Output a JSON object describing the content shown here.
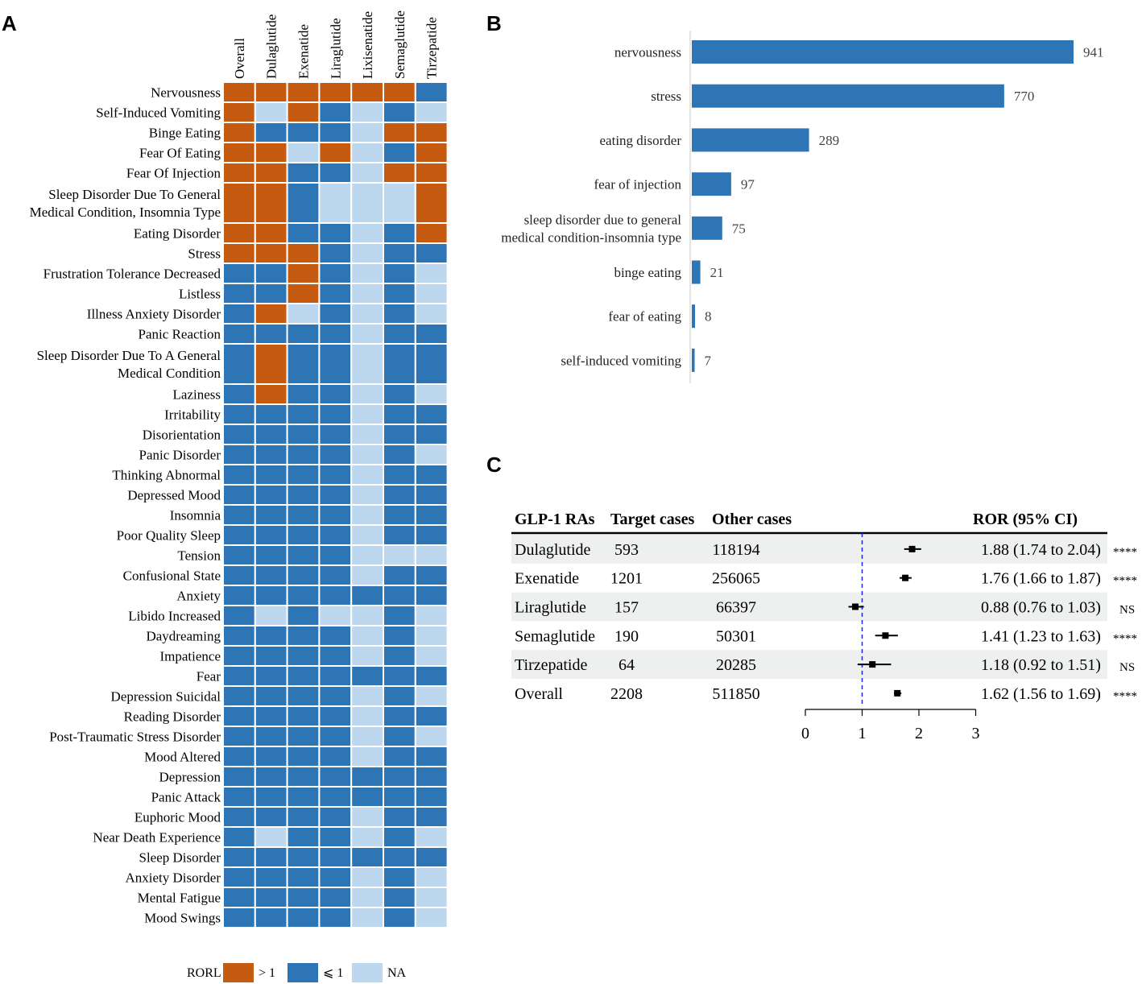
{
  "panels": {
    "a": "A",
    "b": "B",
    "c": "C"
  },
  "colors": {
    "gt1": "#C55A11",
    "le1": "#2E75B6",
    "na": "#BDD7EE",
    "forest_stripe": "#EEF0EF",
    "ref_line": "#2222DD"
  },
  "chart_data": [
    {
      "type": "heatmap",
      "panel": "A",
      "columns": [
        "Overall",
        "Dulaglutide",
        "Exenatide",
        "Liraglutide",
        "Lixisenatide",
        "Semaglutide",
        "Tirzepatide"
      ],
      "rows": [
        {
          "label": [
            "Nervousness"
          ],
          "cells": [
            "gt1",
            "gt1",
            "gt1",
            "gt1",
            "gt1",
            "gt1",
            "le1"
          ]
        },
        {
          "label": [
            "Self-Induced Vomiting"
          ],
          "cells": [
            "gt1",
            "na",
            "gt1",
            "le1",
            "na",
            "le1",
            "na"
          ]
        },
        {
          "label": [
            "Binge Eating"
          ],
          "cells": [
            "gt1",
            "le1",
            "le1",
            "le1",
            "na",
            "gt1",
            "gt1"
          ]
        },
        {
          "label": [
            "Fear Of Eating"
          ],
          "cells": [
            "gt1",
            "gt1",
            "na",
            "gt1",
            "na",
            "le1",
            "gt1"
          ]
        },
        {
          "label": [
            "Fear Of Injection"
          ],
          "cells": [
            "gt1",
            "gt1",
            "le1",
            "le1",
            "na",
            "gt1",
            "gt1"
          ]
        },
        {
          "label": [
            "Sleep Disorder Due To General",
            "Medical Condition, Insomnia Type"
          ],
          "cells": [
            "gt1",
            "gt1",
            "le1",
            "na",
            "na",
            "na",
            "gt1"
          ]
        },
        {
          "label": [
            "Eating Disorder"
          ],
          "cells": [
            "gt1",
            "gt1",
            "le1",
            "le1",
            "na",
            "le1",
            "gt1"
          ]
        },
        {
          "label": [
            "Stress"
          ],
          "cells": [
            "gt1",
            "gt1",
            "gt1",
            "le1",
            "na",
            "le1",
            "le1"
          ]
        },
        {
          "label": [
            "Frustration Tolerance Decreased"
          ],
          "cells": [
            "le1",
            "le1",
            "gt1",
            "le1",
            "na",
            "le1",
            "na"
          ]
        },
        {
          "label": [
            "Listless"
          ],
          "cells": [
            "le1",
            "le1",
            "gt1",
            "le1",
            "na",
            "le1",
            "na"
          ]
        },
        {
          "label": [
            "Illness Anxiety Disorder"
          ],
          "cells": [
            "le1",
            "gt1",
            "na",
            "le1",
            "na",
            "le1",
            "na"
          ]
        },
        {
          "label": [
            "Panic Reaction"
          ],
          "cells": [
            "le1",
            "le1",
            "le1",
            "le1",
            "na",
            "le1",
            "le1"
          ]
        },
        {
          "label": [
            "Sleep Disorder Due To A General",
            "Medical Condition"
          ],
          "cells": [
            "le1",
            "gt1",
            "le1",
            "le1",
            "na",
            "le1",
            "le1"
          ]
        },
        {
          "label": [
            "Laziness"
          ],
          "cells": [
            "le1",
            "gt1",
            "le1",
            "le1",
            "na",
            "le1",
            "na"
          ]
        },
        {
          "label": [
            "Irritability"
          ],
          "cells": [
            "le1",
            "le1",
            "le1",
            "le1",
            "na",
            "le1",
            "le1"
          ]
        },
        {
          "label": [
            "Disorientation"
          ],
          "cells": [
            "le1",
            "le1",
            "le1",
            "le1",
            "na",
            "le1",
            "le1"
          ]
        },
        {
          "label": [
            "Panic Disorder"
          ],
          "cells": [
            "le1",
            "le1",
            "le1",
            "le1",
            "na",
            "le1",
            "na"
          ]
        },
        {
          "label": [
            "Thinking Abnormal"
          ],
          "cells": [
            "le1",
            "le1",
            "le1",
            "le1",
            "na",
            "le1",
            "le1"
          ]
        },
        {
          "label": [
            "Depressed Mood"
          ],
          "cells": [
            "le1",
            "le1",
            "le1",
            "le1",
            "na",
            "le1",
            "le1"
          ]
        },
        {
          "label": [
            "Insomnia"
          ],
          "cells": [
            "le1",
            "le1",
            "le1",
            "le1",
            "na",
            "le1",
            "le1"
          ]
        },
        {
          "label": [
            "Poor Quality Sleep"
          ],
          "cells": [
            "le1",
            "le1",
            "le1",
            "le1",
            "na",
            "le1",
            "le1"
          ]
        },
        {
          "label": [
            "Tension"
          ],
          "cells": [
            "le1",
            "le1",
            "le1",
            "le1",
            "na",
            "na",
            "na"
          ]
        },
        {
          "label": [
            "Confusional State"
          ],
          "cells": [
            "le1",
            "le1",
            "le1",
            "le1",
            "na",
            "le1",
            "le1"
          ]
        },
        {
          "label": [
            "Anxiety"
          ],
          "cells": [
            "le1",
            "le1",
            "le1",
            "le1",
            "le1",
            "le1",
            "le1"
          ]
        },
        {
          "label": [
            "Libido Increased"
          ],
          "cells": [
            "le1",
            "na",
            "le1",
            "na",
            "na",
            "le1",
            "na"
          ]
        },
        {
          "label": [
            "Daydreaming"
          ],
          "cells": [
            "le1",
            "le1",
            "le1",
            "le1",
            "na",
            "le1",
            "na"
          ]
        },
        {
          "label": [
            "Impatience"
          ],
          "cells": [
            "le1",
            "le1",
            "le1",
            "le1",
            "na",
            "le1",
            "na"
          ]
        },
        {
          "label": [
            "Fear"
          ],
          "cells": [
            "le1",
            "le1",
            "le1",
            "le1",
            "le1",
            "le1",
            "le1"
          ]
        },
        {
          "label": [
            "Depression Suicidal"
          ],
          "cells": [
            "le1",
            "le1",
            "le1",
            "le1",
            "na",
            "le1",
            "na"
          ]
        },
        {
          "label": [
            "Reading Disorder"
          ],
          "cells": [
            "le1",
            "le1",
            "le1",
            "le1",
            "na",
            "le1",
            "le1"
          ]
        },
        {
          "label": [
            "Post-Traumatic Stress Disorder"
          ],
          "cells": [
            "le1",
            "le1",
            "le1",
            "le1",
            "na",
            "le1",
            "na"
          ]
        },
        {
          "label": [
            "Mood Altered"
          ],
          "cells": [
            "le1",
            "le1",
            "le1",
            "le1",
            "na",
            "le1",
            "le1"
          ]
        },
        {
          "label": [
            "Depression"
          ],
          "cells": [
            "le1",
            "le1",
            "le1",
            "le1",
            "le1",
            "le1",
            "le1"
          ]
        },
        {
          "label": [
            "Panic Attack"
          ],
          "cells": [
            "le1",
            "le1",
            "le1",
            "le1",
            "le1",
            "le1",
            "le1"
          ]
        },
        {
          "label": [
            "Euphoric Mood"
          ],
          "cells": [
            "le1",
            "le1",
            "le1",
            "le1",
            "na",
            "le1",
            "le1"
          ]
        },
        {
          "label": [
            "Near Death Experience"
          ],
          "cells": [
            "le1",
            "na",
            "le1",
            "le1",
            "na",
            "le1",
            "na"
          ]
        },
        {
          "label": [
            "Sleep Disorder"
          ],
          "cells": [
            "le1",
            "le1",
            "le1",
            "le1",
            "le1",
            "le1",
            "le1"
          ]
        },
        {
          "label": [
            "Anxiety Disorder"
          ],
          "cells": [
            "le1",
            "le1",
            "le1",
            "le1",
            "na",
            "le1",
            "na"
          ]
        },
        {
          "label": [
            "Mental Fatigue"
          ],
          "cells": [
            "le1",
            "le1",
            "le1",
            "le1",
            "na",
            "le1",
            "na"
          ]
        },
        {
          "label": [
            "Mood Swings"
          ],
          "cells": [
            "le1",
            "le1",
            "le1",
            "le1",
            "na",
            "le1",
            "na"
          ]
        }
      ],
      "legend": {
        "title": "RORL",
        "items": [
          {
            "key": "gt1",
            "label": "> 1"
          },
          {
            "key": "le1",
            "label": "⩽ 1"
          },
          {
            "key": "na",
            "label": "NA"
          }
        ]
      }
    },
    {
      "type": "bar",
      "panel": "B",
      "orientation": "horizontal",
      "categories": [
        [
          "nervousness"
        ],
        [
          "stress"
        ],
        [
          "eating disorder"
        ],
        [
          "fear of injection"
        ],
        [
          "sleep disorder due to general",
          "medical condition-insomnia type"
        ],
        [
          "binge eating"
        ],
        [
          "fear of eating"
        ],
        [
          "self-induced vomiting"
        ]
      ],
      "values": [
        941,
        770,
        289,
        97,
        75,
        21,
        8,
        7
      ],
      "xlim": [
        0,
        941
      ]
    },
    {
      "type": "table",
      "subtype": "forest",
      "panel": "C",
      "headers": [
        "GLP‑1 RAs",
        "Target cases",
        "Other cases",
        "ROR (95% CI)"
      ],
      "rows": [
        {
          "name": "Dulaglutide",
          "target": "593",
          "other": "118194",
          "ror_text": "1.88 (1.74 to 2.04)",
          "ror": 1.88,
          "lo": 1.74,
          "hi": 2.04,
          "sig": "****"
        },
        {
          "name": "Exenatide",
          "target": "1201",
          "other": "256065",
          "ror_text": "1.76 (1.66 to 1.87)",
          "ror": 1.76,
          "lo": 1.66,
          "hi": 1.87,
          "sig": "****"
        },
        {
          "name": "Liraglutide",
          "target": "157",
          "other": "66397",
          "ror_text": "0.88 (0.76 to 1.03)",
          "ror": 0.88,
          "lo": 0.76,
          "hi": 1.03,
          "sig": "NS"
        },
        {
          "name": "Semaglutide",
          "target": "190",
          "other": "50301",
          "ror_text": "1.41 (1.23 to 1.63)",
          "ror": 1.41,
          "lo": 1.23,
          "hi": 1.63,
          "sig": "****"
        },
        {
          "name": "Tirzepatide",
          "target": "64",
          "other": "20285",
          "ror_text": "1.18 (0.92 to 1.51)",
          "ror": 1.18,
          "lo": 0.92,
          "hi": 1.51,
          "sig": "NS"
        },
        {
          "name": "Overall",
          "target": "2208",
          "other": "511850",
          "ror_text": "1.62 (1.56 to 1.69)",
          "ror": 1.62,
          "lo": 1.56,
          "hi": 1.69,
          "sig": "****"
        }
      ],
      "xlim": [
        0,
        3
      ],
      "xticks": [
        0,
        1,
        2,
        3
      ],
      "reference": 1
    }
  ]
}
